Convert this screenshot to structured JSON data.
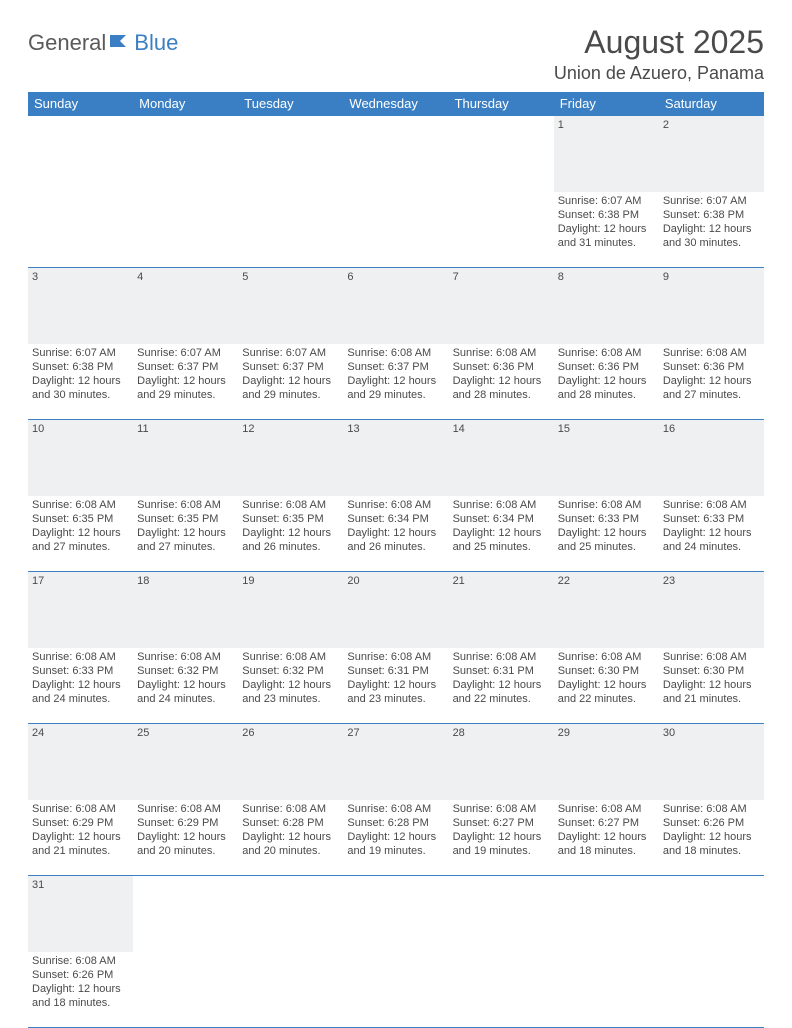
{
  "logo": {
    "part1": "General",
    "part2": "Blue"
  },
  "title": "August 2025",
  "location": "Union de Azuero, Panama",
  "colors": {
    "header_bg": "#3a7fc4",
    "header_text": "#ffffff",
    "daynum_bg": "#eef0f1",
    "border": "#3a7fc4",
    "text": "#4a4a4a",
    "logo_gray": "#5a5a5a",
    "logo_blue": "#3a7fc4"
  },
  "weekdays": [
    "Sunday",
    "Monday",
    "Tuesday",
    "Wednesday",
    "Thursday",
    "Friday",
    "Saturday"
  ],
  "weeks": [
    [
      null,
      null,
      null,
      null,
      null,
      {
        "n": "1",
        "sr": "Sunrise: 6:07 AM",
        "ss": "Sunset: 6:38 PM",
        "d1": "Daylight: 12 hours",
        "d2": "and 31 minutes."
      },
      {
        "n": "2",
        "sr": "Sunrise: 6:07 AM",
        "ss": "Sunset: 6:38 PM",
        "d1": "Daylight: 12 hours",
        "d2": "and 30 minutes."
      }
    ],
    [
      {
        "n": "3",
        "sr": "Sunrise: 6:07 AM",
        "ss": "Sunset: 6:38 PM",
        "d1": "Daylight: 12 hours",
        "d2": "and 30 minutes."
      },
      {
        "n": "4",
        "sr": "Sunrise: 6:07 AM",
        "ss": "Sunset: 6:37 PM",
        "d1": "Daylight: 12 hours",
        "d2": "and 29 minutes."
      },
      {
        "n": "5",
        "sr": "Sunrise: 6:07 AM",
        "ss": "Sunset: 6:37 PM",
        "d1": "Daylight: 12 hours",
        "d2": "and 29 minutes."
      },
      {
        "n": "6",
        "sr": "Sunrise: 6:08 AM",
        "ss": "Sunset: 6:37 PM",
        "d1": "Daylight: 12 hours",
        "d2": "and 29 minutes."
      },
      {
        "n": "7",
        "sr": "Sunrise: 6:08 AM",
        "ss": "Sunset: 6:36 PM",
        "d1": "Daylight: 12 hours",
        "d2": "and 28 minutes."
      },
      {
        "n": "8",
        "sr": "Sunrise: 6:08 AM",
        "ss": "Sunset: 6:36 PM",
        "d1": "Daylight: 12 hours",
        "d2": "and 28 minutes."
      },
      {
        "n": "9",
        "sr": "Sunrise: 6:08 AM",
        "ss": "Sunset: 6:36 PM",
        "d1": "Daylight: 12 hours",
        "d2": "and 27 minutes."
      }
    ],
    [
      {
        "n": "10",
        "sr": "Sunrise: 6:08 AM",
        "ss": "Sunset: 6:35 PM",
        "d1": "Daylight: 12 hours",
        "d2": "and 27 minutes."
      },
      {
        "n": "11",
        "sr": "Sunrise: 6:08 AM",
        "ss": "Sunset: 6:35 PM",
        "d1": "Daylight: 12 hours",
        "d2": "and 27 minutes."
      },
      {
        "n": "12",
        "sr": "Sunrise: 6:08 AM",
        "ss": "Sunset: 6:35 PM",
        "d1": "Daylight: 12 hours",
        "d2": "and 26 minutes."
      },
      {
        "n": "13",
        "sr": "Sunrise: 6:08 AM",
        "ss": "Sunset: 6:34 PM",
        "d1": "Daylight: 12 hours",
        "d2": "and 26 minutes."
      },
      {
        "n": "14",
        "sr": "Sunrise: 6:08 AM",
        "ss": "Sunset: 6:34 PM",
        "d1": "Daylight: 12 hours",
        "d2": "and 25 minutes."
      },
      {
        "n": "15",
        "sr": "Sunrise: 6:08 AM",
        "ss": "Sunset: 6:33 PM",
        "d1": "Daylight: 12 hours",
        "d2": "and 25 minutes."
      },
      {
        "n": "16",
        "sr": "Sunrise: 6:08 AM",
        "ss": "Sunset: 6:33 PM",
        "d1": "Daylight: 12 hours",
        "d2": "and 24 minutes."
      }
    ],
    [
      {
        "n": "17",
        "sr": "Sunrise: 6:08 AM",
        "ss": "Sunset: 6:33 PM",
        "d1": "Daylight: 12 hours",
        "d2": "and 24 minutes."
      },
      {
        "n": "18",
        "sr": "Sunrise: 6:08 AM",
        "ss": "Sunset: 6:32 PM",
        "d1": "Daylight: 12 hours",
        "d2": "and 24 minutes."
      },
      {
        "n": "19",
        "sr": "Sunrise: 6:08 AM",
        "ss": "Sunset: 6:32 PM",
        "d1": "Daylight: 12 hours",
        "d2": "and 23 minutes."
      },
      {
        "n": "20",
        "sr": "Sunrise: 6:08 AM",
        "ss": "Sunset: 6:31 PM",
        "d1": "Daylight: 12 hours",
        "d2": "and 23 minutes."
      },
      {
        "n": "21",
        "sr": "Sunrise: 6:08 AM",
        "ss": "Sunset: 6:31 PM",
        "d1": "Daylight: 12 hours",
        "d2": "and 22 minutes."
      },
      {
        "n": "22",
        "sr": "Sunrise: 6:08 AM",
        "ss": "Sunset: 6:30 PM",
        "d1": "Daylight: 12 hours",
        "d2": "and 22 minutes."
      },
      {
        "n": "23",
        "sr": "Sunrise: 6:08 AM",
        "ss": "Sunset: 6:30 PM",
        "d1": "Daylight: 12 hours",
        "d2": "and 21 minutes."
      }
    ],
    [
      {
        "n": "24",
        "sr": "Sunrise: 6:08 AM",
        "ss": "Sunset: 6:29 PM",
        "d1": "Daylight: 12 hours",
        "d2": "and 21 minutes."
      },
      {
        "n": "25",
        "sr": "Sunrise: 6:08 AM",
        "ss": "Sunset: 6:29 PM",
        "d1": "Daylight: 12 hours",
        "d2": "and 20 minutes."
      },
      {
        "n": "26",
        "sr": "Sunrise: 6:08 AM",
        "ss": "Sunset: 6:28 PM",
        "d1": "Daylight: 12 hours",
        "d2": "and 20 minutes."
      },
      {
        "n": "27",
        "sr": "Sunrise: 6:08 AM",
        "ss": "Sunset: 6:28 PM",
        "d1": "Daylight: 12 hours",
        "d2": "and 19 minutes."
      },
      {
        "n": "28",
        "sr": "Sunrise: 6:08 AM",
        "ss": "Sunset: 6:27 PM",
        "d1": "Daylight: 12 hours",
        "d2": "and 19 minutes."
      },
      {
        "n": "29",
        "sr": "Sunrise: 6:08 AM",
        "ss": "Sunset: 6:27 PM",
        "d1": "Daylight: 12 hours",
        "d2": "and 18 minutes."
      },
      {
        "n": "30",
        "sr": "Sunrise: 6:08 AM",
        "ss": "Sunset: 6:26 PM",
        "d1": "Daylight: 12 hours",
        "d2": "and 18 minutes."
      }
    ],
    [
      {
        "n": "31",
        "sr": "Sunrise: 6:08 AM",
        "ss": "Sunset: 6:26 PM",
        "d1": "Daylight: 12 hours",
        "d2": "and 18 minutes."
      },
      null,
      null,
      null,
      null,
      null,
      null
    ]
  ]
}
